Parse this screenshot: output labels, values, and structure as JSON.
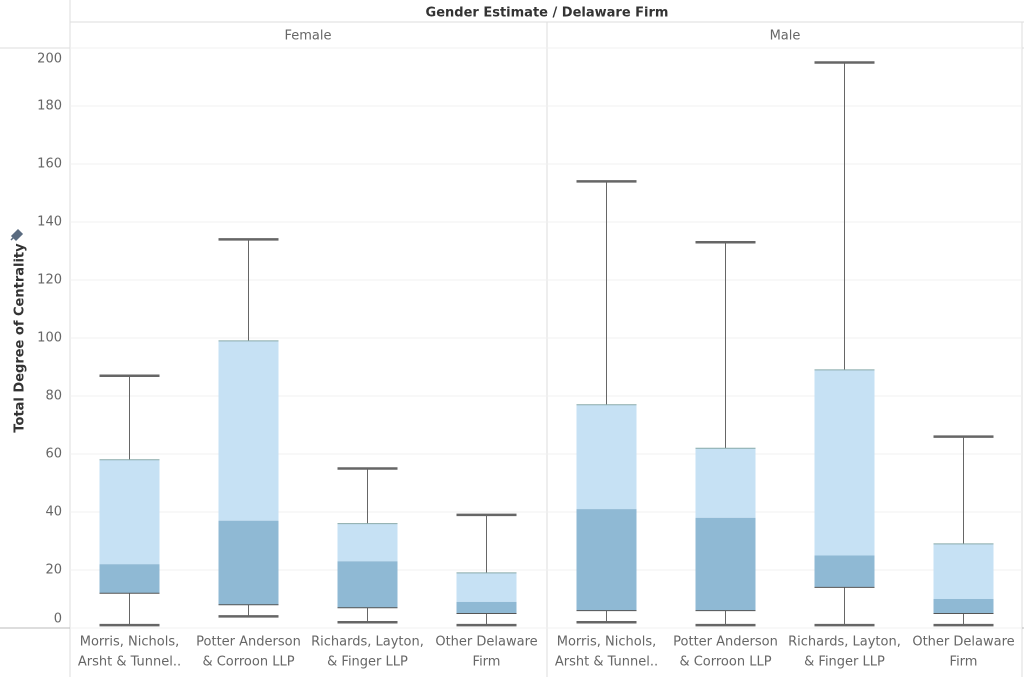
{
  "chart_data": {
    "type": "box",
    "title": "Gender Estimate / Delaware Firm",
    "y_label": "Total Degree of Centrality",
    "categories": [
      [
        "Morris, Nichols,",
        "Arsht & Tunnel.."
      ],
      [
        "Potter Anderson",
        "& Corroon LLP"
      ],
      [
        "Richards, Layton,",
        "& Finger LLP"
      ],
      [
        "Other Delaware",
        "Firm"
      ]
    ],
    "panels": [
      {
        "name": "Female",
        "min": [
          1,
          4,
          2,
          1
        ],
        "q1": [
          12,
          8,
          7,
          5
        ],
        "median": [
          22,
          37,
          23,
          9
        ],
        "q3": [
          58,
          99,
          36,
          19
        ],
        "max": [
          87,
          134,
          55,
          39
        ]
      },
      {
        "name": "Male",
        "min": [
          2,
          1,
          1,
          1
        ],
        "q1": [
          6,
          6,
          14,
          5
        ],
        "median": [
          41,
          38,
          25,
          10
        ],
        "q3": [
          77,
          62,
          89,
          29
        ],
        "max": [
          154,
          133,
          195,
          66
        ]
      }
    ],
    "upper_color": "#c6e1f4",
    "lower_color": "#8fb9d4",
    "whisker_color": "#666666",
    "ylim": [
      0,
      200
    ],
    "yticks": [
      0,
      20,
      40,
      60,
      80,
      100,
      120,
      140,
      160,
      180,
      200
    ],
    "grid": true
  }
}
